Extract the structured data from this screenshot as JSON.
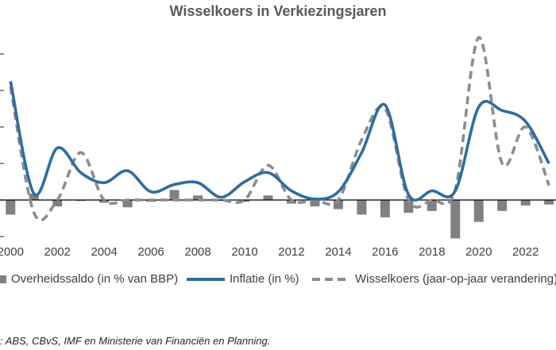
{
  "chart_data": {
    "type": "bar+line",
    "title": "Wisselkoers in Verkiezingsjaren",
    "xlabel": "",
    "ylabel": "",
    "x_ticks": [
      2000,
      2002,
      2004,
      2006,
      2008,
      2010,
      2012,
      2014,
      2016,
      2018,
      2020,
      2022
    ],
    "xlim": [
      1999.55,
      2023.3
    ],
    "ylim": [
      -20,
      90
    ],
    "grid": false,
    "legend_position": "bottom",
    "years": [
      2000,
      2001,
      2002,
      2003,
      2004,
      2005,
      2006,
      2007,
      2008,
      2009,
      2010,
      2011,
      2012,
      2013,
      2014,
      2015,
      2016,
      2017,
      2018,
      2019,
      2020,
      2021,
      2022,
      2023
    ],
    "series": [
      {
        "name": "Overheidssaldo (in % van BBP)",
        "type": "bar",
        "color": "#808080",
        "values": [
          -8,
          3.5,
          -3.5,
          -0.5,
          -1.5,
          -4,
          -1,
          5.5,
          2.5,
          -0.5,
          -1,
          2.5,
          -2,
          -3.5,
          -5,
          -8,
          -9.5,
          -7,
          -6,
          -21,
          -12,
          -6,
          -3,
          -2.5
        ]
      },
      {
        "name": "Inflatie (in %)",
        "type": "line",
        "color": "#2e6ca4",
        "values": [
          65,
          3.5,
          28.5,
          15,
          9.5,
          16,
          4.5,
          8.5,
          9.5,
          1.5,
          10,
          15,
          5,
          0.5,
          4.5,
          26,
          52,
          3,
          5,
          5,
          51,
          49,
          43,
          20
        ]
      },
      {
        "name": "Wisselkoers (jaar-op-jaar verandering)",
        "type": "line",
        "dashed": true,
        "color": "#8c8c8c",
        "values": [
          62,
          -7,
          0,
          26,
          0,
          0,
          0,
          0,
          0,
          0,
          0,
          19,
          0,
          0,
          0,
          33,
          50,
          0,
          0,
          6,
          89,
          20,
          40,
          8
        ]
      }
    ]
  },
  "source_note": ": ABS, CBvS, IMF en Ministerie van Financiën en Planning."
}
